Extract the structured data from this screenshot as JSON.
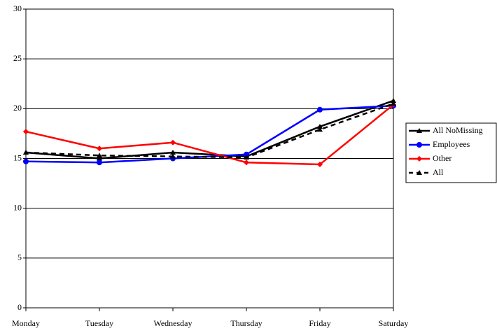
{
  "chart_data": {
    "type": "line",
    "categories": [
      "Monday",
      "Tuesday",
      "Wednesday",
      "Thursday",
      "Friday",
      "Saturday"
    ],
    "series": [
      {
        "name": "All NoMissing",
        "color": "#000000",
        "marker": "triangle",
        "dashed": false,
        "values": [
          15.6,
          15.0,
          15.6,
          15.2,
          18.2,
          20.8
        ]
      },
      {
        "name": "Employees",
        "color": "#0000ff",
        "marker": "circle",
        "dashed": false,
        "values": [
          14.7,
          14.6,
          15.0,
          15.4,
          19.9,
          20.3
        ]
      },
      {
        "name": "Other",
        "color": "#ff0000",
        "marker": "diamond",
        "dashed": false,
        "values": [
          17.7,
          16.0,
          16.6,
          14.6,
          14.4,
          20.4
        ]
      },
      {
        "name": "All",
        "color": "#000000",
        "marker": "triangle",
        "dashed": true,
        "values": [
          15.6,
          15.3,
          15.2,
          15.1,
          17.9,
          20.5
        ]
      }
    ],
    "ylim": [
      0,
      30
    ],
    "yticks": [
      0,
      5,
      10,
      15,
      20,
      25,
      30
    ],
    "grid": true,
    "legend": "right"
  }
}
